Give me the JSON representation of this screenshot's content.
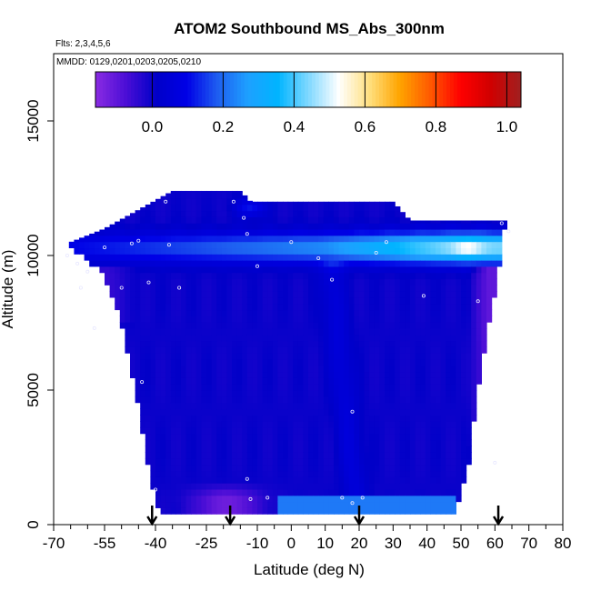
{
  "chart_data": {
    "type": "heatmap",
    "title": "ATOM2 Southbound MS_Abs_300nm",
    "subtitle_flights": "Flts: 2,3,4,5,6",
    "subtitle_dates": "MMDD: 0129,0201,0203,0205,0210",
    "xlabel": "Latitude (deg N)",
    "ylabel": "Altitude (m)",
    "xlim": [
      -70,
      80
    ],
    "ylim": [
      0,
      17500
    ],
    "x_ticks_major": [
      -70,
      -55,
      -40,
      -25,
      -10,
      0,
      10,
      20,
      30,
      40,
      50,
      60,
      70,
      80
    ],
    "x_tick_labels": [
      "-70",
      "-55",
      "-40",
      "-25",
      "-10",
      "0",
      "10",
      "20",
      "30",
      "40",
      "50",
      "60",
      "70",
      "80"
    ],
    "x_ticks_minor_step": 5,
    "y_ticks": [
      0,
      5000,
      10000,
      15000
    ],
    "y_tick_labels": [
      "0",
      "5000",
      "10000",
      "15000"
    ],
    "colorbar": {
      "range": [
        -0.16,
        1.04
      ],
      "ticks": [
        0.0,
        0.2,
        0.4,
        0.6,
        0.8,
        1.0
      ],
      "tick_labels": [
        "0.0",
        "0.2",
        "0.4",
        "0.6",
        "0.8",
        "1.0"
      ],
      "colors": [
        "#8a2be2",
        "#4b0ed6",
        "#0000c8",
        "#0000e6",
        "#1e5cf0",
        "#1ea0ff",
        "#00b4ff",
        "#7fd8ff",
        "#ffffff",
        "#ffe080",
        "#ffa500",
        "#ff5a00",
        "#ff0000",
        "#d00000",
        "#a02020"
      ]
    },
    "profile_latitudes": [
      -41,
      -18,
      20,
      61
    ],
    "valid_domain": {
      "lat_start": -40,
      "lat_end": 48,
      "left_edge_lat_at_alt": [
        [
          500,
          -39
        ],
        [
          2000,
          -42
        ],
        [
          5000,
          -46
        ],
        [
          8000,
          -51
        ],
        [
          9500,
          -56
        ],
        [
          10200,
          -65
        ]
      ],
      "right_edge_lat_at_alt": [
        [
          500,
          48
        ],
        [
          2000,
          52
        ],
        [
          5000,
          55
        ],
        [
          8000,
          59
        ],
        [
          10000,
          62
        ],
        [
          11300,
          63
        ]
      ],
      "top_profile": [
        [
          -65,
          10500
        ],
        [
          -55,
          11000
        ],
        [
          -45,
          11700
        ],
        [
          -35,
          12400
        ],
        [
          -15,
          12400
        ],
        [
          -12,
          12000
        ],
        [
          -10,
          12000
        ],
        [
          30,
          12000
        ],
        [
          35,
          11300
        ],
        [
          63,
          11300
        ]
      ]
    },
    "field_description_values": {
      "background_value": 0.0,
      "bright_layer": {
        "alt_center": 10300,
        "value_west": 0.1,
        "value_center": 0.25,
        "value_east": 0.45,
        "hot_spot_lat": 52,
        "hot_spot_value": 0.55
      },
      "low_layer": {
        "alt_max": 1600,
        "lat_range": [
          -28,
          -10
        ],
        "value": -0.12
      },
      "east_edge_low": {
        "lat_range": [
          52,
          62
        ],
        "alt_range": [
          3000,
          8000
        ],
        "value": -0.1
      },
      "west_edge_low": {
        "lat_range": [
          -65,
          -50
        ],
        "alt_range": [
          7500,
          9500
        ],
        "value": -0.08
      },
      "mid_streak": {
        "lat_at_low": 20,
        "lat_at_high": 12,
        "value": 0.06
      },
      "surface_strip": {
        "alt_range": [
          400,
          1000
        ],
        "lat_range": [
          -10,
          48
        ],
        "value": 0.22
      },
      "spike_lat": 44,
      "spike_value": 0.3
    },
    "sample_points": [
      [
        -66,
        10000
      ],
      [
        -63,
        9700
      ],
      [
        -60,
        9400
      ],
      [
        -62,
        8800
      ],
      [
        -58,
        7300
      ],
      [
        -55,
        10300
      ],
      [
        -50,
        8800
      ],
      [
        -47,
        10450
      ],
      [
        -45,
        10550
      ],
      [
        -44,
        5300
      ],
      [
        -42,
        9000
      ],
      [
        -36,
        10400
      ],
      [
        -33,
        8800
      ],
      [
        -40,
        1300
      ],
      [
        -37,
        12000
      ],
      [
        -17,
        12000
      ],
      [
        -13,
        10800
      ],
      [
        -14,
        11400
      ],
      [
        -10,
        9600
      ],
      [
        -13,
        1700
      ],
      [
        -12,
        950
      ],
      [
        -7,
        1000
      ],
      [
        0,
        10500
      ],
      [
        8,
        9900
      ],
      [
        12,
        9100
      ],
      [
        15,
        1000
      ],
      [
        18,
        800
      ],
      [
        18,
        4200
      ],
      [
        21,
        1000
      ],
      [
        25,
        10100
      ],
      [
        28,
        10500
      ],
      [
        39,
        8500
      ],
      [
        55,
        8300
      ],
      [
        62,
        11200
      ],
      [
        64,
        10900
      ],
      [
        60,
        2300
      ]
    ]
  }
}
